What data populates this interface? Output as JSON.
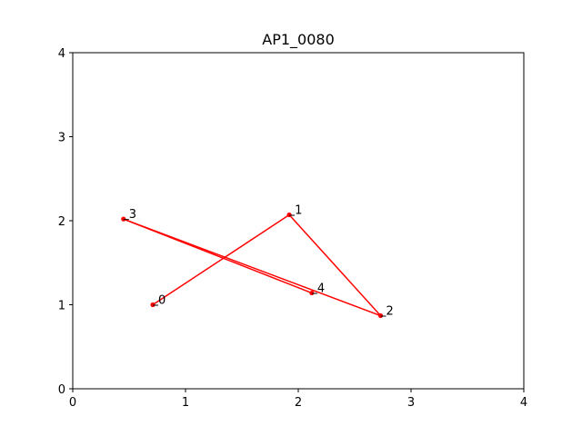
{
  "chart_data": {
    "type": "line",
    "title": "AP1_0080",
    "xlabel": "",
    "ylabel": "",
    "xlim": [
      0,
      4
    ],
    "ylim": [
      0,
      4
    ],
    "xticks": [
      "0",
      "1",
      "2",
      "3",
      "4"
    ],
    "yticks": [
      "0",
      "1",
      "2",
      "3",
      "4"
    ],
    "grid": false,
    "series": [
      {
        "color": "#ff0000",
        "points": [
          {
            "label": "0",
            "x": 0.71,
            "y": 1.0
          },
          {
            "label": "1",
            "x": 1.92,
            "y": 2.07
          },
          {
            "label": "2",
            "x": 2.73,
            "y": 0.87
          },
          {
            "label": "3",
            "x": 0.45,
            "y": 2.02
          },
          {
            "label": "4",
            "x": 2.12,
            "y": 1.14
          }
        ]
      }
    ]
  }
}
